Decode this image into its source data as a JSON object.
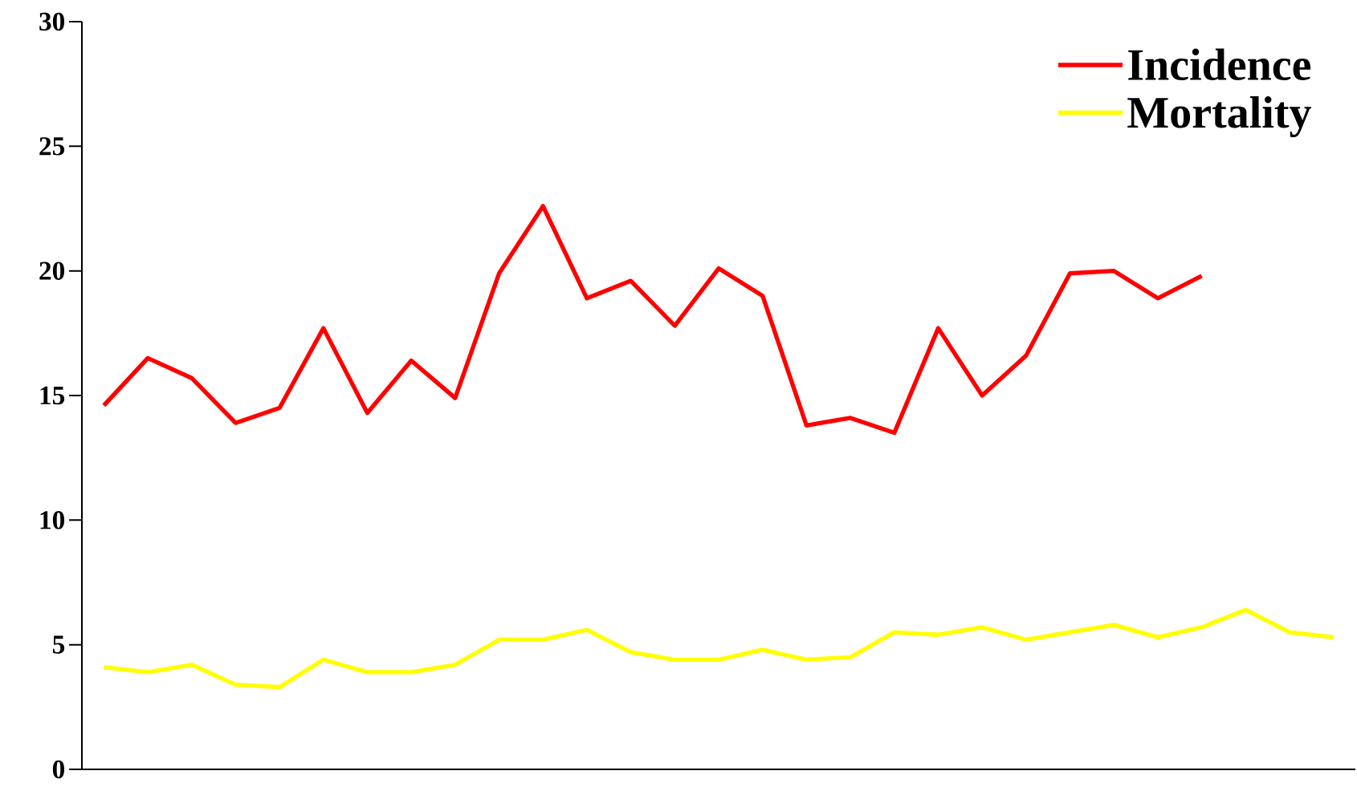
{
  "chart_data": {
    "type": "line",
    "categories": [
      null,
      null,
      null,
      null,
      null,
      null,
      null,
      null,
      null,
      null,
      null,
      null,
      null,
      null,
      null,
      null,
      null,
      null,
      null,
      null,
      null,
      null,
      null,
      null,
      null,
      null,
      null,
      null,
      null
    ],
    "series": [
      {
        "name": "Incidence",
        "color": "#ff0000",
        "values": [
          14.6,
          16.5,
          15.7,
          13.9,
          14.5,
          17.7,
          14.3,
          16.4,
          14.9,
          19.9,
          22.6,
          18.9,
          19.6,
          17.8,
          20.1,
          19.0,
          13.8,
          14.1,
          13.5,
          17.7,
          15.0,
          16.6,
          19.9,
          20.0,
          18.9,
          19.8,
          null,
          null,
          null
        ]
      },
      {
        "name": "Mortality",
        "color": "#ffff00",
        "values": [
          4.1,
          3.9,
          4.2,
          3.4,
          3.3,
          4.4,
          3.9,
          3.9,
          4.2,
          5.2,
          5.2,
          5.6,
          4.7,
          4.4,
          4.4,
          4.8,
          4.4,
          4.5,
          5.5,
          5.4,
          5.7,
          5.2,
          5.5,
          5.8,
          5.3,
          5.7,
          6.4,
          5.5,
          5.3
        ]
      }
    ],
    "ylim": [
      0,
      30
    ],
    "yticks": [
      0,
      5,
      10,
      15,
      20,
      25,
      30
    ],
    "legend": "top right"
  }
}
